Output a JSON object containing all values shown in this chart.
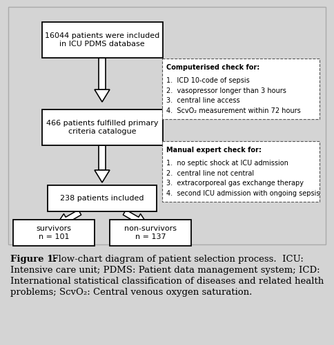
{
  "bg_color": "#d4d4d4",
  "box_fill": "#ffffff",
  "box_edge": "#000000",
  "figsize": [
    4.84,
    5.01
  ],
  "dpi": 100,
  "box1_text": "16044 patients were included\nin ICU PDMS database",
  "box2_text": "466 patients fulfilled primary\ncriteria catalogue",
  "box3_text": "238 patients included",
  "box4_text": "survivors\nn = 101",
  "box5_text": "non-survivors\nn = 137",
  "dashed1_title": "Computerised check for:",
  "dashed1_items": [
    "1.  ICD 10-code of sepsis",
    "2.  vasopressor longer than 3 hours",
    "3.  central line access",
    "4.  ScvO₂ measurement within 72 hours"
  ],
  "dashed2_title": "Manual expert check for:",
  "dashed2_items": [
    "1.  no septic shock at ICU admission",
    "2.  central line not central",
    "3.  extracorporeal gas exchange therapy",
    "4.  second ICU admission with ongoing sepsis"
  ],
  "cap_bold": "Figure 1:",
  "cap_rest": "  Flow-chart diagram of patient selection process.  ICU:\nIntensive care unit; PDMS: Patient data management system; ICD:\nInternational statistical classification of diseases and related health\nproblems; ScvO₂: Central venous oxygen saturation."
}
